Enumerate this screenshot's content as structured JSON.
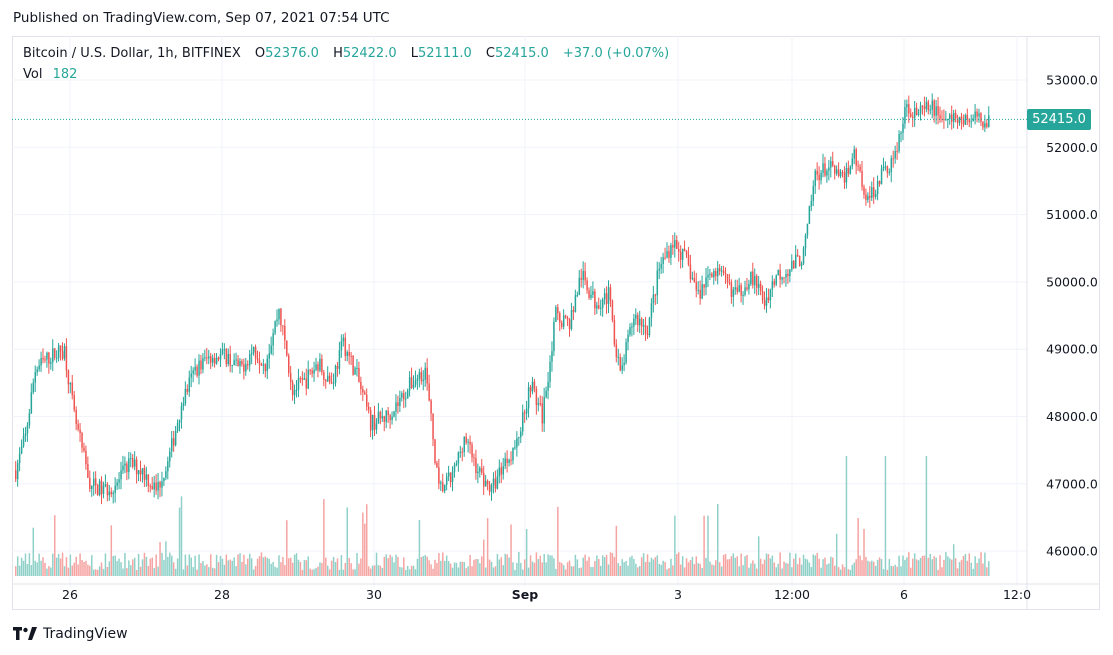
{
  "published": "Published on TradingView.com, Sep 07, 2021 07:54 UTC",
  "legend": {
    "symbol": "Bitcoin / U.S. Dollar, 1h, BITFINEX",
    "o_label": "O",
    "o_value": "52376.0",
    "h_label": "H",
    "h_value": "52422.0",
    "l_label": "L",
    "l_value": "52111.0",
    "c_label": "C",
    "c_value": "52415.0",
    "change": "+37.0 (+0.07%)"
  },
  "volume": {
    "label": "Vol",
    "value": "182"
  },
  "last_price_label": "52415.0",
  "footer": {
    "brand": "TradingView"
  },
  "colors": {
    "up": "#26a69a",
    "down": "#ef5350",
    "up_vol": "#8fd1c9",
    "down_vol": "#f5a4a2"
  },
  "chart_data": {
    "type": "candlestick",
    "title": "Bitcoin / U.S. Dollar, 1h, BITFINEX",
    "ylim": [
      45600,
      53500
    ],
    "y_ticks": [
      46000,
      47000,
      48000,
      49000,
      50000,
      51000,
      52000,
      53000
    ],
    "y_tick_labels": [
      "46000.0",
      "47000.0",
      "48000.0",
      "49000.0",
      "50000.0",
      "51000.0",
      "52000.0",
      "53000.0"
    ],
    "x_tick_labels": [
      "26",
      "28",
      "30",
      "Sep",
      "3",
      "12:00",
      "6",
      "12:0"
    ],
    "last_price": 52415,
    "close_path_index": [
      0,
      5,
      10,
      18,
      25,
      30,
      38,
      45,
      52,
      58,
      65,
      72,
      78,
      85,
      92,
      100,
      108,
      115,
      122,
      128,
      135,
      142,
      148,
      155,
      162,
      168,
      175,
      182,
      190,
      196,
      203,
      210,
      217,
      224,
      230,
      237,
      244,
      250,
      257,
      264,
      270,
      277,
      284,
      290,
      297,
      304,
      310,
      317,
      324,
      330,
      337,
      344,
      350,
      357,
      364,
      370,
      377,
      384,
      390,
      397,
      404,
      410,
      417,
      424,
      430,
      437,
      444,
      450,
      457,
      464,
      470,
      477,
      484,
      490,
      497
    ],
    "close_path_price": [
      47200,
      47700,
      48700,
      48900,
      49000,
      48000,
      47000,
      46900,
      47000,
      47300,
      47200,
      46900,
      47300,
      48200,
      48700,
      48900,
      48900,
      48700,
      49000,
      48800,
      49600,
      48400,
      48500,
      48800,
      48500,
      49100,
      48600,
      47900,
      48000,
      48200,
      48500,
      48700,
      46900,
      47100,
      47700,
      47200,
      46900,
      47300,
      47600,
      48500,
      48000,
      49500,
      49400,
      50100,
      49700,
      49800,
      48600,
      49500,
      49300,
      50200,
      50600,
      50300,
      49800,
      50200,
      50000,
      49800,
      50100,
      49700,
      50100,
      50200,
      50400,
      51600,
      51700,
      51500,
      51900,
      51200,
      51600,
      51800,
      52600,
      52500,
      52600,
      52400,
      52415,
      52415,
      52415
    ]
  }
}
